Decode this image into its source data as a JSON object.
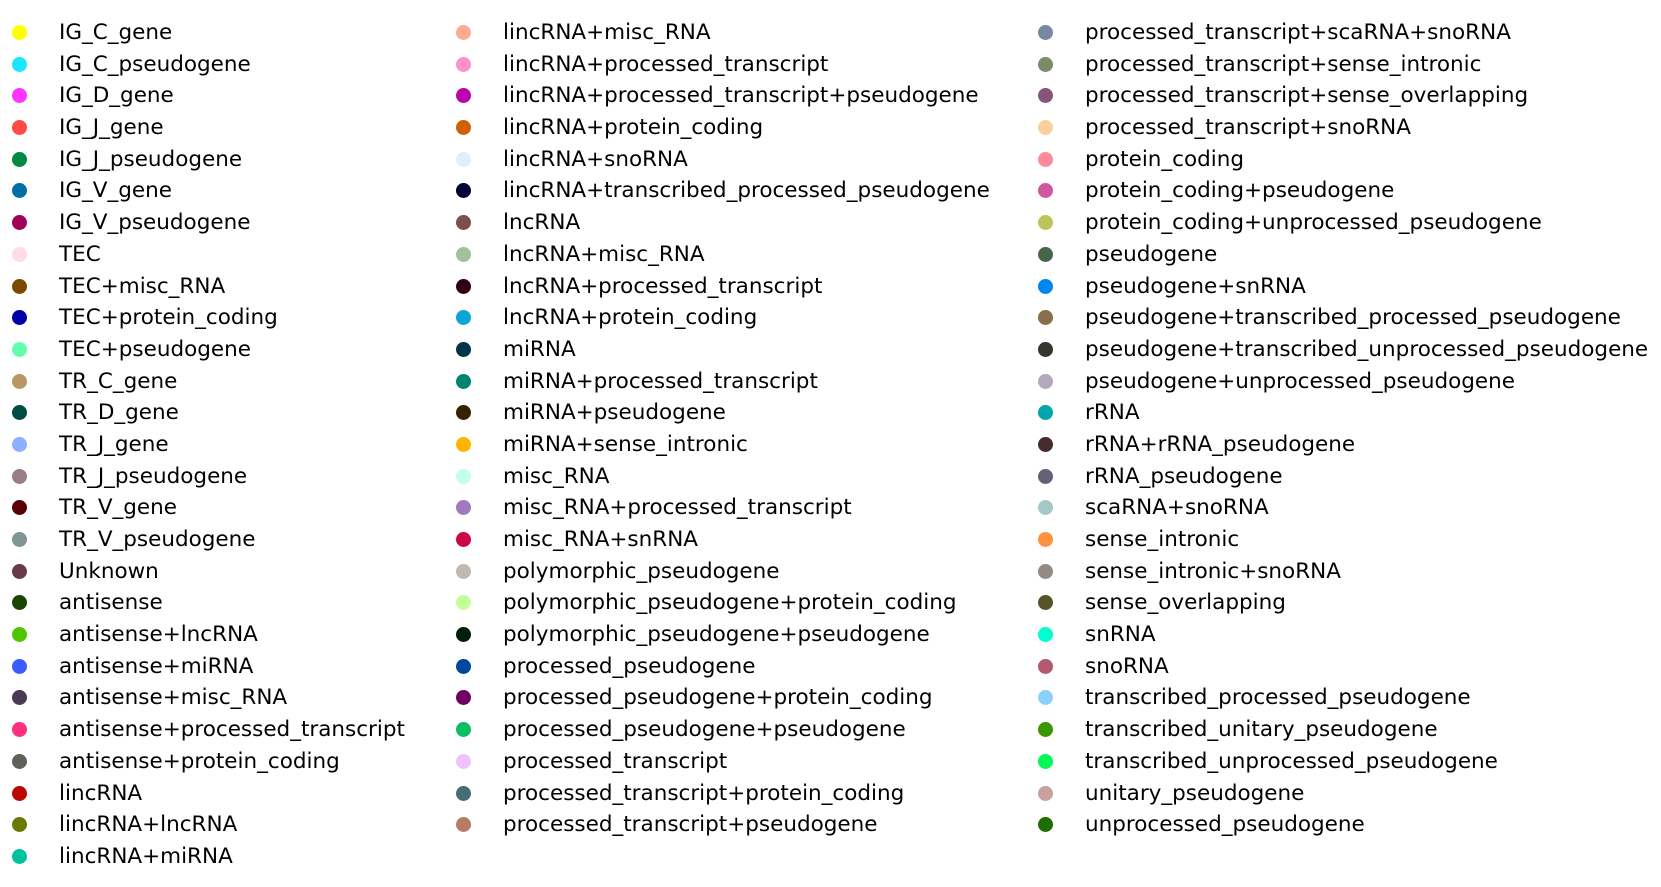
{
  "chart_data": {
    "type": "legend",
    "legend_placement": "full-canvas, three columns",
    "columns": [
      [
        {
          "label": "IG_C_gene",
          "color": "#ffff00"
        },
        {
          "label": "IG_C_pseudogene",
          "color": "#1ce6ff"
        },
        {
          "label": "IG_D_gene",
          "color": "#ff34ff"
        },
        {
          "label": "IG_J_gene",
          "color": "#ff4a46"
        },
        {
          "label": "IG_J_pseudogene",
          "color": "#008941"
        },
        {
          "label": "IG_V_gene",
          "color": "#006fa6"
        },
        {
          "label": "IG_V_pseudogene",
          "color": "#a30059"
        },
        {
          "label": "TEC",
          "color": "#ffdbe5"
        },
        {
          "label": "TEC+misc_RNA",
          "color": "#7a4900"
        },
        {
          "label": "TEC+protein_coding",
          "color": "#0000a6"
        },
        {
          "label": "TEC+pseudogene",
          "color": "#63ffac"
        },
        {
          "label": "TR_C_gene",
          "color": "#b79762"
        },
        {
          "label": "TR_D_gene",
          "color": "#004d43"
        },
        {
          "label": "TR_J_gene",
          "color": "#8fb0ff"
        },
        {
          "label": "TR_J_pseudogene",
          "color": "#997d87"
        },
        {
          "label": "TR_V_gene",
          "color": "#5a0007"
        },
        {
          "label": "TR_V_pseudogene",
          "color": "#809693"
        },
        {
          "label": "Unknown",
          "color": "#6a3a4c"
        },
        {
          "label": "antisense",
          "color": "#1b4400"
        },
        {
          "label": "antisense+lncRNA",
          "color": "#4fc601"
        },
        {
          "label": "antisense+miRNA",
          "color": "#3b5dff"
        },
        {
          "label": "antisense+misc_RNA",
          "color": "#4a3b53"
        },
        {
          "label": "antisense+processed_transcript",
          "color": "#ff2f80"
        },
        {
          "label": "antisense+protein_coding",
          "color": "#61615a"
        },
        {
          "label": "lincRNA",
          "color": "#ba0900"
        },
        {
          "label": "lincRNA+lncRNA",
          "color": "#6b7900"
        },
        {
          "label": "lincRNA+miRNA",
          "color": "#00c2a0"
        }
      ],
      [
        {
          "label": "lincRNA+misc_RNA",
          "color": "#ffaa92"
        },
        {
          "label": "lincRNA+processed_transcript",
          "color": "#ff90c9"
        },
        {
          "label": "lincRNA+processed_transcript+pseudogene",
          "color": "#b903aa"
        },
        {
          "label": "lincRNA+protein_coding",
          "color": "#d16100"
        },
        {
          "label": "lincRNA+snoRNA",
          "color": "#ddefff"
        },
        {
          "label": "lincRNA+transcribed_processed_pseudogene",
          "color": "#000035"
        },
        {
          "label": "lncRNA",
          "color": "#7b4f4b"
        },
        {
          "label": "lncRNA+misc_RNA",
          "color": "#a1c299"
        },
        {
          "label": "lncRNA+processed_transcript",
          "color": "#300018"
        },
        {
          "label": "lncRNA+protein_coding",
          "color": "#0aa6d8"
        },
        {
          "label": "miRNA",
          "color": "#013349"
        },
        {
          "label": "miRNA+processed_transcript",
          "color": "#00846f"
        },
        {
          "label": "miRNA+pseudogene",
          "color": "#372101"
        },
        {
          "label": "miRNA+sense_intronic",
          "color": "#ffb500"
        },
        {
          "label": "misc_RNA",
          "color": "#c2ffed"
        },
        {
          "label": "misc_RNA+processed_transcript",
          "color": "#a079bf"
        },
        {
          "label": "misc_RNA+snRNA",
          "color": "#cc0744"
        },
        {
          "label": "polymorphic_pseudogene",
          "color": "#c0b9b2"
        },
        {
          "label": "polymorphic_pseudogene+protein_coding",
          "color": "#c2ff99"
        },
        {
          "label": "polymorphic_pseudogene+pseudogene",
          "color": "#001e09"
        },
        {
          "label": "processed_pseudogene",
          "color": "#00489c"
        },
        {
          "label": "processed_pseudogene+protein_coding",
          "color": "#6f0062"
        },
        {
          "label": "processed_pseudogene+pseudogene",
          "color": "#0cbd66"
        },
        {
          "label": "processed_transcript",
          "color": "#eec3ff"
        },
        {
          "label": "processed_transcript+protein_coding",
          "color": "#456d75"
        },
        {
          "label": "processed_transcript+pseudogene",
          "color": "#b77b68"
        }
      ],
      [
        {
          "label": "processed_transcript+scaRNA+snoRNA",
          "color": "#7a87a1"
        },
        {
          "label": "processed_transcript+sense_intronic",
          "color": "#788d66"
        },
        {
          "label": "processed_transcript+sense_overlapping",
          "color": "#885578"
        },
        {
          "label": "processed_transcript+snoRNA",
          "color": "#fad09f"
        },
        {
          "label": "protein_coding",
          "color": "#ff8a9a"
        },
        {
          "label": "protein_coding+pseudogene",
          "color": "#d157a0"
        },
        {
          "label": "protein_coding+unprocessed_pseudogene",
          "color": "#bec459"
        },
        {
          "label": "pseudogene",
          "color": "#456648"
        },
        {
          "label": "pseudogene+snRNA",
          "color": "#0086ed"
        },
        {
          "label": "pseudogene+transcribed_processed_pseudogene",
          "color": "#886f4c"
        },
        {
          "label": "pseudogene+transcribed_unprocessed_pseudogene",
          "color": "#34362d"
        },
        {
          "label": "pseudogene+unprocessed_pseudogene",
          "color": "#b4a8bd"
        },
        {
          "label": "rRNA",
          "color": "#00a6aa"
        },
        {
          "label": "rRNA+rRNA_pseudogene",
          "color": "#452c2c"
        },
        {
          "label": "rRNA_pseudogene",
          "color": "#636375"
        },
        {
          "label": "scaRNA+snoRNA",
          "color": "#a3c8c9"
        },
        {
          "label": "sense_intronic",
          "color": "#ff913f"
        },
        {
          "label": "sense_intronic+snoRNA",
          "color": "#938a81"
        },
        {
          "label": "sense_overlapping",
          "color": "#575329"
        },
        {
          "label": "snRNA",
          "color": "#00fecf"
        },
        {
          "label": "snoRNA",
          "color": "#b05b6f"
        },
        {
          "label": "transcribed_processed_pseudogene",
          "color": "#8cd0ff"
        },
        {
          "label": "transcribed_unitary_pseudogene",
          "color": "#3b9700"
        },
        {
          "label": "transcribed_unprocessed_pseudogene",
          "color": "#04f757"
        },
        {
          "label": "unitary_pseudogene",
          "color": "#c8a1a1"
        },
        {
          "label": "unprocessed_pseudogene",
          "color": "#1e6e00"
        }
      ]
    ]
  }
}
